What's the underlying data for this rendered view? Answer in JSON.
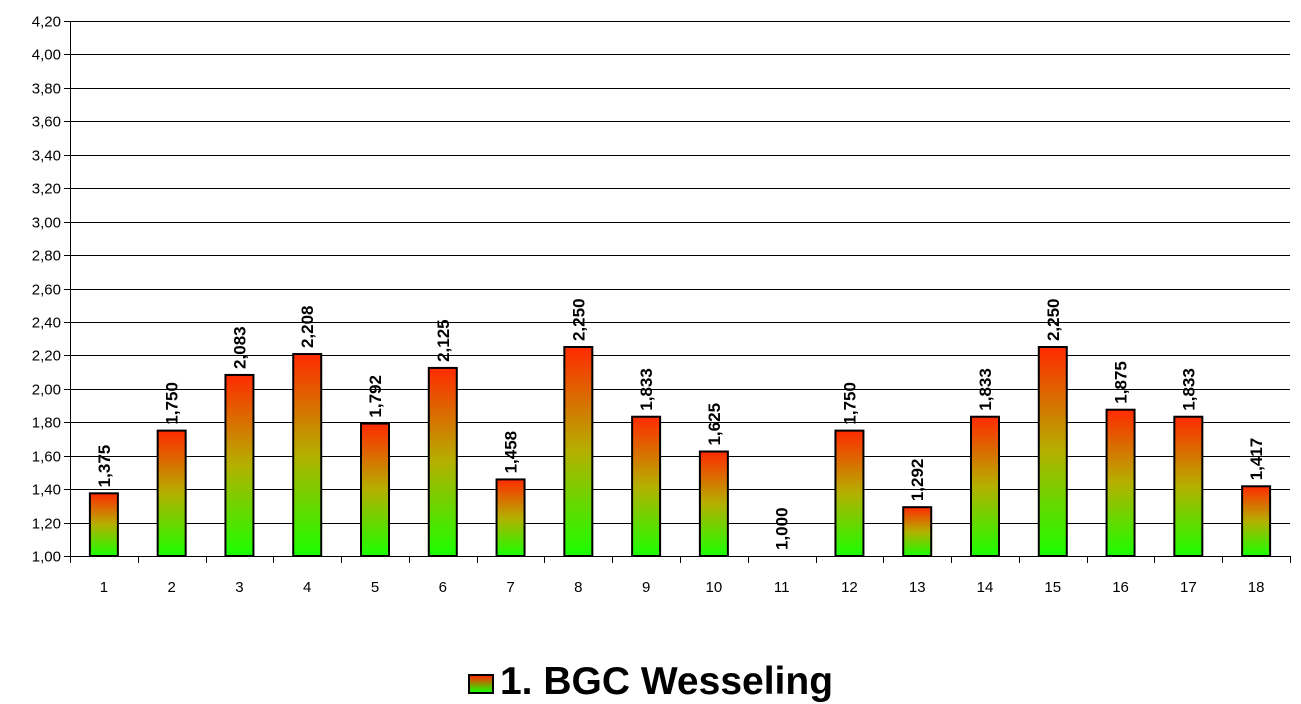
{
  "chart_data": {
    "type": "bar",
    "categories": [
      "1",
      "2",
      "3",
      "4",
      "5",
      "6",
      "7",
      "8",
      "9",
      "10",
      "11",
      "12",
      "13",
      "14",
      "15",
      "16",
      "17",
      "18"
    ],
    "series": [
      {
        "name": "1. BGC Wesseling",
        "values": [
          1.375,
          1.75,
          2.083,
          2.208,
          1.792,
          2.125,
          1.458,
          2.25,
          1.833,
          1.625,
          1.0,
          1.75,
          1.292,
          1.833,
          2.25,
          1.875,
          1.833,
          1.417
        ],
        "data_labels": [
          "1,375",
          "1,750",
          "2,083",
          "2,208",
          "1,792",
          "2,125",
          "1,458",
          "2,250",
          "1,833",
          "1,625",
          "1,000",
          "1,750",
          "1,292",
          "1,833",
          "2,250",
          "1,875",
          "1,833",
          "1,417"
        ]
      }
    ],
    "ylim": [
      1.0,
      4.2
    ],
    "y_ticks": [
      1.0,
      1.2,
      1.4,
      1.6,
      1.8,
      2.0,
      2.2,
      2.4,
      2.6,
      2.8,
      3.0,
      3.2,
      3.4,
      3.6,
      3.8,
      4.0,
      4.2
    ],
    "y_tick_labels": [
      "1,00",
      "1,20",
      "1,40",
      "1,60",
      "1,80",
      "2,00",
      "2,20",
      "2,40",
      "2,60",
      "2,80",
      "3,00",
      "3,20",
      "3,40",
      "3,60",
      "3,80",
      "4,00",
      "4,20"
    ],
    "grid": true,
    "legend_position": "bottom-center",
    "bar_gradient": {
      "top": "#ff2a00",
      "bottom": "#1aff00"
    },
    "title": "",
    "xlabel": "",
    "ylabel": ""
  },
  "legend": {
    "label": "1. BGC Wesseling"
  }
}
